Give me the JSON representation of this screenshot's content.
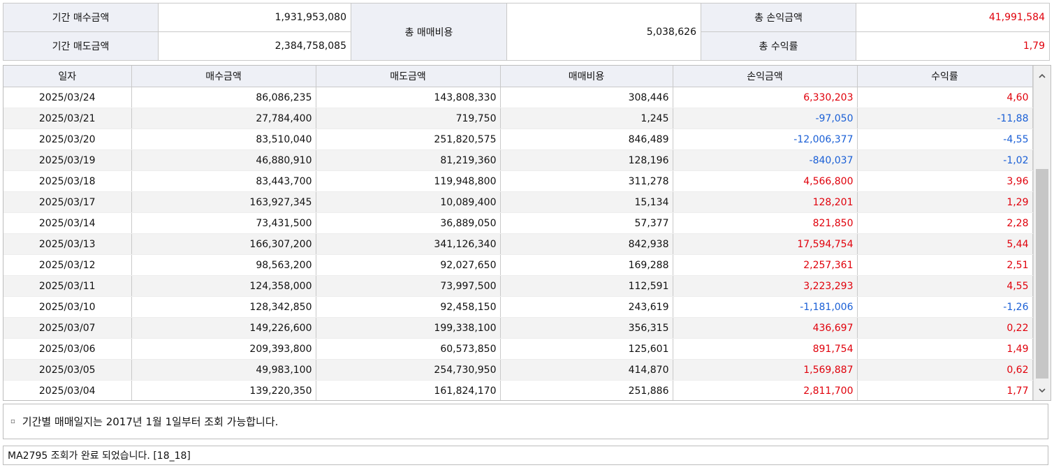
{
  "summary": {
    "buy_label": "기간 매수금액",
    "buy_value": "1,931,953,080",
    "sell_label": "기간 매도금액",
    "sell_value": "2,384,758,085",
    "cost_label": "총 매매비용",
    "cost_value": "5,038,626",
    "pl_label": "총 손익금액",
    "pl_value": "41,991,584",
    "rate_label": "총 수익률",
    "rate_value": "1,79"
  },
  "grid": {
    "headers": [
      "일자",
      "매수금액",
      "매도금액",
      "매매비용",
      "손익금액",
      "수익률"
    ],
    "rows": [
      {
        "date": "2025/03/24",
        "buy": "86,086,235",
        "sell": "143,808,330",
        "cost": "308,446",
        "pl": "6,330,203",
        "rate": "4,60",
        "sign": "pos"
      },
      {
        "date": "2025/03/21",
        "buy": "27,784,400",
        "sell": "719,750",
        "cost": "1,245",
        "pl": "-97,050",
        "rate": "-11,88",
        "sign": "neg"
      },
      {
        "date": "2025/03/20",
        "buy": "83,510,040",
        "sell": "251,820,575",
        "cost": "846,489",
        "pl": "-12,006,377",
        "rate": "-4,55",
        "sign": "neg"
      },
      {
        "date": "2025/03/19",
        "buy": "46,880,910",
        "sell": "81,219,360",
        "cost": "128,196",
        "pl": "-840,037",
        "rate": "-1,02",
        "sign": "neg"
      },
      {
        "date": "2025/03/18",
        "buy": "83,443,700",
        "sell": "119,948,800",
        "cost": "311,278",
        "pl": "4,566,800",
        "rate": "3,96",
        "sign": "pos"
      },
      {
        "date": "2025/03/17",
        "buy": "163,927,345",
        "sell": "10,089,400",
        "cost": "15,134",
        "pl": "128,201",
        "rate": "1,29",
        "sign": "pos"
      },
      {
        "date": "2025/03/14",
        "buy": "73,431,500",
        "sell": "36,889,050",
        "cost": "57,377",
        "pl": "821,850",
        "rate": "2,28",
        "sign": "pos"
      },
      {
        "date": "2025/03/13",
        "buy": "166,307,200",
        "sell": "341,126,340",
        "cost": "842,938",
        "pl": "17,594,754",
        "rate": "5,44",
        "sign": "pos"
      },
      {
        "date": "2025/03/12",
        "buy": "98,563,200",
        "sell": "92,027,650",
        "cost": "169,288",
        "pl": "2,257,361",
        "rate": "2,51",
        "sign": "pos"
      },
      {
        "date": "2025/03/11",
        "buy": "124,358,000",
        "sell": "73,997,500",
        "cost": "112,591",
        "pl": "3,223,293",
        "rate": "4,55",
        "sign": "pos"
      },
      {
        "date": "2025/03/10",
        "buy": "128,342,850",
        "sell": "92,458,150",
        "cost": "243,619",
        "pl": "-1,181,006",
        "rate": "-1,26",
        "sign": "neg"
      },
      {
        "date": "2025/03/07",
        "buy": "149,226,600",
        "sell": "199,338,100",
        "cost": "356,315",
        "pl": "436,697",
        "rate": "0,22",
        "sign": "pos"
      },
      {
        "date": "2025/03/06",
        "buy": "209,393,800",
        "sell": "60,573,850",
        "cost": "125,601",
        "pl": "891,754",
        "rate": "1,49",
        "sign": "pos"
      },
      {
        "date": "2025/03/05",
        "buy": "49,983,100",
        "sell": "254,730,950",
        "cost": "414,870",
        "pl": "1,569,887",
        "rate": "0,62",
        "sign": "pos"
      },
      {
        "date": "2025/03/04",
        "buy": "139,220,350",
        "sell": "161,824,170",
        "cost": "251,886",
        "pl": "2,811,700",
        "rate": "1,77",
        "sign": "pos"
      }
    ]
  },
  "notice": {
    "bullet": "▫",
    "text": "기간별 매매일지는 2017년 1월 1일부터 조회 가능합니다."
  },
  "status": {
    "text": "MA2795 조회가 완료 되었습니다. [18_18]"
  },
  "icons": {
    "scroll_up": "chevron-up-icon",
    "scroll_down": "chevron-down-icon"
  },
  "colors": {
    "positive": "#e0000b",
    "negative": "#1a5fd6",
    "header_bg": "#eef0f6"
  }
}
